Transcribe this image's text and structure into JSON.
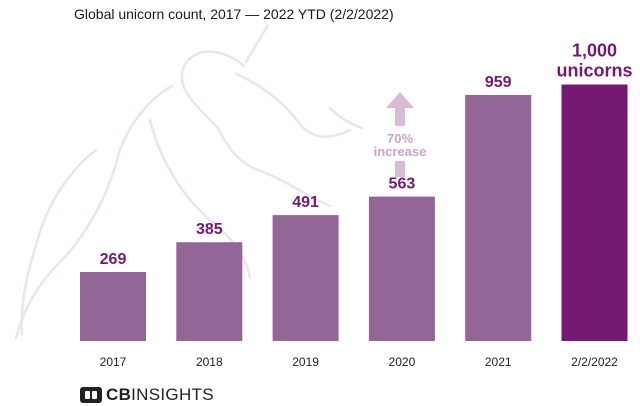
{
  "subtitle": "Global unicorn count, 2017 — 2022 YTD (2/2/2022)",
  "brand": {
    "bold": "CB",
    "rest": "INSIGHTS"
  },
  "colors": {
    "bar": "#946597",
    "highlight": "#741871",
    "label": "#741871",
    "annotation": "#d7bbd7"
  },
  "annotation": {
    "line1": "70%",
    "line2": "increase"
  },
  "chart_data": {
    "type": "bar",
    "categories": [
      "2017",
      "2018",
      "2019",
      "2020",
      "2021",
      "2/2/2022"
    ],
    "values": [
      269,
      385,
      491,
      563,
      959,
      1000
    ],
    "data_labels": [
      "269",
      "385",
      "491",
      "563",
      "959",
      "1,000"
    ],
    "final_label_suffix": "unicorns",
    "title": "Global unicorn count, 2017 — 2022 YTD (2/2/2022)",
    "xlabel": "",
    "ylabel": "",
    "grid": false,
    "legend": "none"
  }
}
